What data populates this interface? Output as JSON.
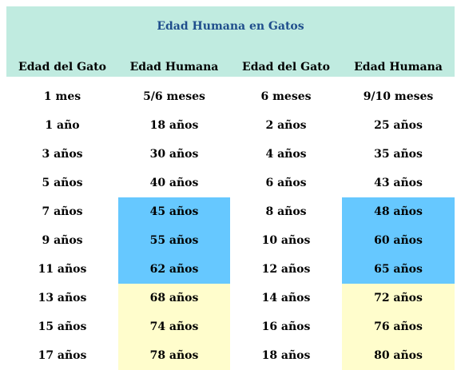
{
  "title": "Edad Humana en Gatos",
  "headers": [
    "Edad del Gato",
    "Edad Humana",
    "Edad del Gato",
    "Edad Humana"
  ],
  "rows": [
    [
      "1 mes",
      "5/6 meses",
      "6 meses",
      "9/10 meses"
    ],
    [
      "1 año",
      "18 años",
      "2 años",
      "25 años"
    ],
    [
      "3 años",
      "30 años",
      "4 años",
      "35 años"
    ],
    [
      "5 años",
      "40 años",
      "6 años",
      "43 años"
    ],
    [
      "7 años",
      "45 años",
      "8 años",
      "48 años"
    ],
    [
      "9 años",
      "55 años",
      "10 años",
      "60 años"
    ],
    [
      "11 años",
      "62 años",
      "12 años",
      "65 años"
    ],
    [
      "13 años",
      "68 años",
      "14 años",
      "72 años"
    ],
    [
      "15 años",
      "74 años",
      "16 años",
      "76 años"
    ],
    [
      "17 años",
      "78 años",
      "18 años",
      "80 años"
    ]
  ],
  "colors": {
    "header_bg": "#c0ebe0",
    "title": "#1f4e8c",
    "highlight_blue": "#66c8ff",
    "highlight_yellow": "#fffdcc"
  }
}
